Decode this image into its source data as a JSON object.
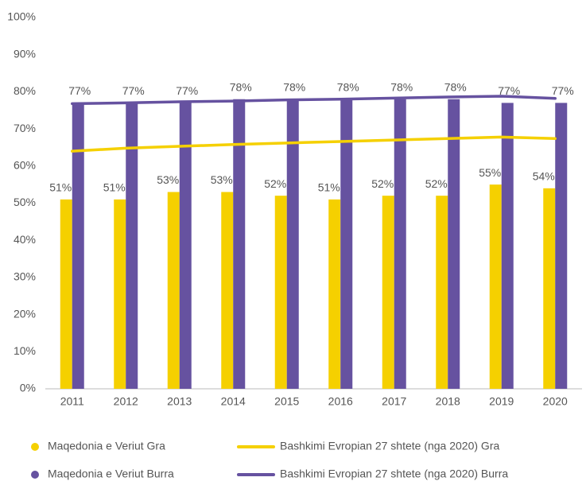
{
  "chart_data": {
    "type": "bar",
    "categories": [
      "2011",
      "2012",
      "2013",
      "2014",
      "2015",
      "2016",
      "2017",
      "2018",
      "2019",
      "2020"
    ],
    "series": [
      {
        "name": "Maqedonia e Veriut Gra",
        "type": "bar",
        "color": "#f5d000",
        "values": [
          51,
          51,
          53,
          53,
          52,
          51,
          52,
          52,
          55,
          54
        ],
        "value_labels": [
          "51%",
          "51%",
          "53%",
          "53%",
          "52%",
          "51%",
          "52%",
          "52%",
          "55%",
          "54%"
        ]
      },
      {
        "name": "Maqedonia e Veriut Burra",
        "type": "bar",
        "color": "#6652a0",
        "values": [
          77,
          77,
          77,
          78,
          78,
          78,
          78,
          78,
          77,
          77
        ],
        "value_labels": [
          "77%",
          "77%",
          "77%",
          "78%",
          "78%",
          "78%",
          "78%",
          "78%",
          "77%",
          "77%"
        ]
      },
      {
        "name": "Bashkimi Evropian 27 shtete (nga 2020) Gra",
        "type": "line",
        "color": "#f5d000",
        "values": [
          64,
          64.8,
          65.3,
          65.8,
          66.2,
          66.6,
          67,
          67.4,
          67.8,
          67.4
        ]
      },
      {
        "name": "Bashkimi Evropian 27 shtete (nga 2020) Burra",
        "type": "line",
        "color": "#6652a0",
        "values": [
          76.8,
          77,
          77.3,
          77.5,
          77.8,
          78,
          78.3,
          78.6,
          78.8,
          78.2
        ]
      }
    ],
    "ylim": [
      0,
      100
    ],
    "yticks": [
      {
        "value": 0,
        "label": "0%"
      },
      {
        "value": 10,
        "label": "10%"
      },
      {
        "value": 20,
        "label": "20%"
      },
      {
        "value": 30,
        "label": "30%"
      },
      {
        "value": 40,
        "label": "40%"
      },
      {
        "value": 50,
        "label": "50%"
      },
      {
        "value": 60,
        "label": "60%"
      },
      {
        "value": 70,
        "label": "70%"
      },
      {
        "value": 80,
        "label": "80%"
      },
      {
        "value": 90,
        "label": "90%"
      },
      {
        "value": 100,
        "label": "100%"
      }
    ],
    "grid": false
  }
}
